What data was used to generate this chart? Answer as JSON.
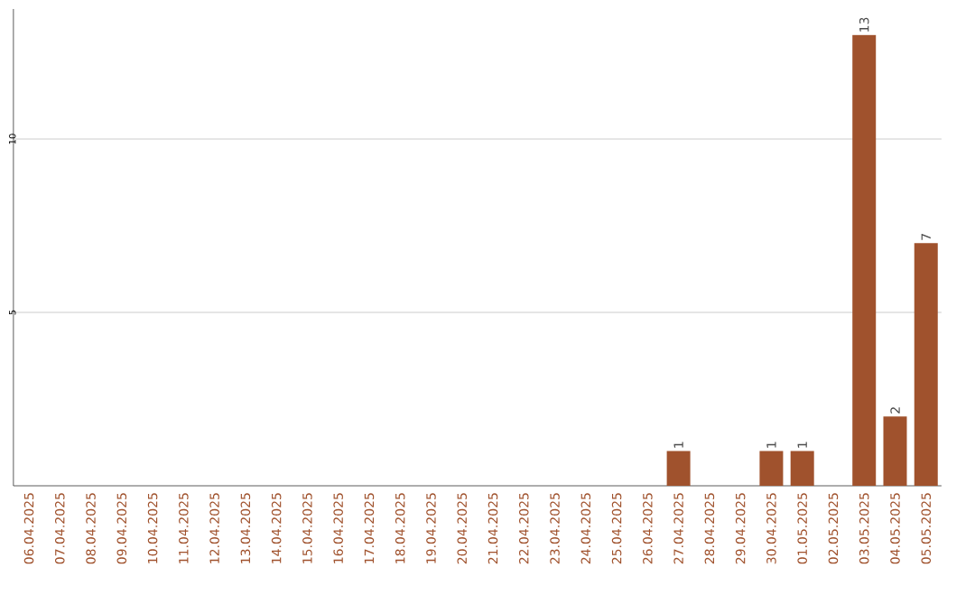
{
  "chart_data": {
    "type": "bar",
    "categories": [
      "06.04.2025",
      "07.04.2025",
      "08.04.2025",
      "09.04.2025",
      "10.04.2025",
      "11.04.2025",
      "12.04.2025",
      "13.04.2025",
      "14.04.2025",
      "15.04.2025",
      "16.04.2025",
      "17.04.2025",
      "18.04.2025",
      "19.04.2025",
      "20.04.2025",
      "21.04.2025",
      "22.04.2025",
      "23.04.2025",
      "24.04.2025",
      "25.04.2025",
      "26.04.2025",
      "27.04.2025",
      "28.04.2025",
      "29.04.2025",
      "30.04.2025",
      "01.05.2025",
      "02.05.2025",
      "03.05.2025",
      "04.05.2025",
      "05.05.2025"
    ],
    "values": [
      0,
      0,
      0,
      0,
      0,
      0,
      0,
      0,
      0,
      0,
      0,
      0,
      0,
      0,
      0,
      0,
      0,
      0,
      0,
      0,
      0,
      1,
      0,
      0,
      1,
      1,
      0,
      13,
      2,
      7
    ],
    "value_labels": [
      null,
      null,
      null,
      null,
      null,
      null,
      null,
      null,
      null,
      null,
      null,
      null,
      null,
      null,
      null,
      null,
      null,
      null,
      null,
      null,
      null,
      "1",
      null,
      null,
      "1",
      "1",
      null,
      "13",
      "2",
      "7"
    ],
    "color": "#a0522d",
    "ylim": [
      0,
      13.75
    ],
    "yticks": [
      5,
      10
    ],
    "grid": "y"
  }
}
